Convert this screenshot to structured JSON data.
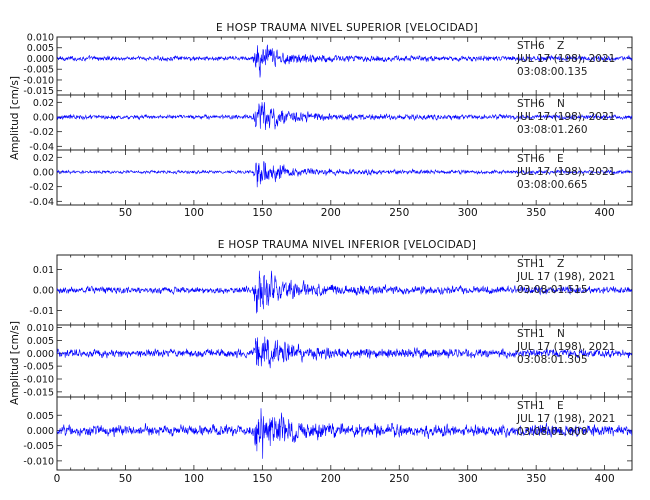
{
  "chart_data": [
    {
      "type": "line",
      "title": "E HOSP TRAUMA NIVEL SUPERIOR [VELOCIDAD]",
      "ylabel": "Amplitud [cm/s]",
      "xlim": [
        0,
        420
      ],
      "x_ticks": [
        "50",
        "100",
        "150",
        "200",
        "250",
        "300",
        "350",
        "400"
      ],
      "color": "#0000ff",
      "series": [
        {
          "station": "STH6",
          "component": "Z",
          "date": "JUL 17 (198), 2021",
          "time": "03:08:00.135",
          "ylim": [
            -0.017,
            0.01
          ],
          "y_ticks": [
            "0.010",
            "0.005",
            "0.000",
            "-0.005",
            "-0.010",
            "-0.015"
          ],
          "noise": 0.0006,
          "onset": 143,
          "peak": 0.009,
          "decay": 12
        },
        {
          "station": "STH6",
          "component": "N",
          "date": "JUL 17 (198), 2021",
          "time": "03:08:01.260",
          "ylim": [
            -0.045,
            0.03
          ],
          "y_ticks": [
            "0.02",
            "0.00",
            "-0.02",
            "-0.04"
          ],
          "noise": 0.0016,
          "onset": 143,
          "peak": 0.028,
          "decay": 14
        },
        {
          "station": "STH6",
          "component": "E",
          "date": "JUL 17 (198), 2021",
          "time": "03:08:00.665",
          "ylim": [
            -0.045,
            0.03
          ],
          "y_ticks": [
            "0.02",
            "0.00",
            "-0.02",
            "-0.04"
          ],
          "noise": 0.0012,
          "onset": 143,
          "peak": 0.026,
          "decay": 14
        }
      ]
    },
    {
      "type": "line",
      "title": "E HOSP TRAUMA NIVEL INFERIOR [VELOCIDAD]",
      "ylabel": "Amplitud [cm/s]",
      "xlim": [
        0,
        420
      ],
      "x_ticks": [
        "0",
        "50",
        "100",
        "150",
        "200",
        "250",
        "300",
        "350",
        "400"
      ],
      "color": "#0000ff",
      "series": [
        {
          "station": "STH1",
          "component": "Z",
          "date": "JUL 17 (198), 2021",
          "time": "03:08:01.515",
          "ylim": [
            -0.017,
            0.017
          ],
          "y_ticks": [
            "0.01",
            "0.00",
            "-0.01"
          ],
          "noise": 0.0009,
          "onset": 143,
          "peak": 0.015,
          "decay": 12
        },
        {
          "station": "STH1",
          "component": "N",
          "date": "JUL 17 (198), 2021",
          "time": "03:08:01.305",
          "ylim": [
            -0.017,
            0.011
          ],
          "y_ticks": [
            "0.010",
            "0.005",
            "0.000",
            "-0.005",
            "-0.010",
            "-0.015"
          ],
          "noise": 0.0009,
          "onset": 143,
          "peak": 0.01,
          "decay": 14
        },
        {
          "station": "STH1",
          "component": "E",
          "date": "JUL 17 (198), 2021",
          "time": "03:08:01.000",
          "ylim": [
            -0.013,
            0.011
          ],
          "y_ticks": [
            "0.005",
            "0.000",
            "-0.005",
            "-0.010"
          ],
          "noise": 0.001,
          "onset": 143,
          "peak": 0.01,
          "decay": 14
        }
      ]
    }
  ]
}
